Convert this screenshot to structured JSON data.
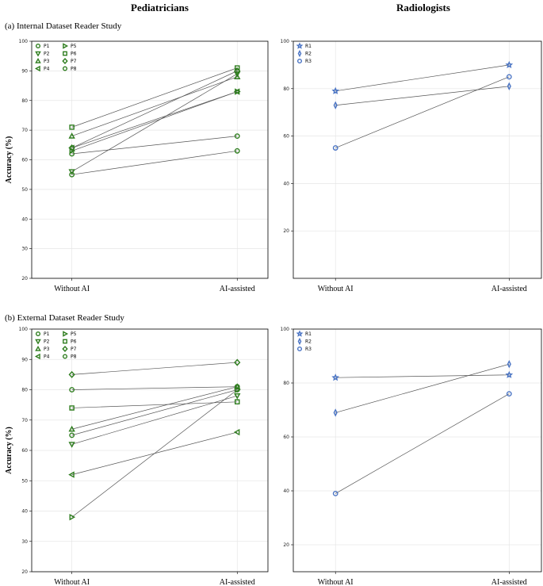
{
  "headers": {
    "left": "Pediatricians",
    "right": "Radiologists"
  },
  "sections": {
    "a": "(a) Internal Dataset Reader Study",
    "b": "(b) External Dataset Reader Study"
  },
  "colors": {
    "pediatrician": "#2e7d1e",
    "radiologist": "#4a74c4",
    "line": "#555555",
    "grid": "#e6e6e6"
  },
  "chart_data": [
    {
      "id": "internal-pediatricians",
      "type": "line",
      "categories": [
        "Without AI",
        "AI-assisted"
      ],
      "ylabel": "Accuracy (%)",
      "ylim": [
        20,
        100
      ],
      "yticks": [
        20,
        30,
        40,
        50,
        60,
        70,
        80,
        90,
        100
      ],
      "grid": true,
      "legend": "top-left",
      "series": [
        {
          "name": "P1",
          "marker": "circle",
          "values": [
            62,
            68
          ]
        },
        {
          "name": "P2",
          "marker": "triangle-down",
          "values": [
            56,
            89
          ]
        },
        {
          "name": "P3",
          "marker": "triangle-up",
          "values": [
            68,
            88
          ]
        },
        {
          "name": "P4",
          "marker": "triangle-left",
          "values": [
            64,
            83
          ]
        },
        {
          "name": "P5",
          "marker": "triangle-right",
          "values": [
            63,
            83
          ]
        },
        {
          "name": "P6",
          "marker": "square",
          "values": [
            71,
            91
          ]
        },
        {
          "name": "P7",
          "marker": "diamond",
          "values": [
            64,
            90
          ]
        },
        {
          "name": "P8",
          "marker": "circle",
          "values": [
            55,
            63
          ]
        }
      ]
    },
    {
      "id": "internal-radiologists",
      "type": "line",
      "categories": [
        "Without AI",
        "AI-assisted"
      ],
      "ylabel": "",
      "ylim": [
        0,
        100
      ],
      "yticks": [
        20,
        40,
        60,
        80,
        100
      ],
      "grid": true,
      "legend": "top-left",
      "series": [
        {
          "name": "R1",
          "marker": "star",
          "values": [
            79,
            90
          ]
        },
        {
          "name": "R2",
          "marker": "thin-diamond",
          "values": [
            73,
            81
          ]
        },
        {
          "name": "R3",
          "marker": "circle",
          "values": [
            55,
            85
          ]
        }
      ]
    },
    {
      "id": "external-pediatricians",
      "type": "line",
      "categories": [
        "Without AI",
        "AI-assisted"
      ],
      "ylabel": "Accuracy (%)",
      "ylim": [
        20,
        100
      ],
      "yticks": [
        20,
        30,
        40,
        50,
        60,
        70,
        80,
        90,
        100
      ],
      "grid": true,
      "legend": "top-left",
      "series": [
        {
          "name": "P1",
          "marker": "circle",
          "values": [
            80,
            81
          ]
        },
        {
          "name": "P2",
          "marker": "triangle-down",
          "values": [
            62,
            78
          ]
        },
        {
          "name": "P3",
          "marker": "triangle-up",
          "values": [
            67,
            81
          ]
        },
        {
          "name": "P4",
          "marker": "triangle-left",
          "values": [
            52,
            66
          ]
        },
        {
          "name": "P5",
          "marker": "triangle-right",
          "values": [
            38,
            80
          ]
        },
        {
          "name": "P6",
          "marker": "square",
          "values": [
            74,
            76
          ]
        },
        {
          "name": "P7",
          "marker": "diamond",
          "values": [
            85,
            89
          ]
        },
        {
          "name": "P8",
          "marker": "circle",
          "values": [
            65,
            80
          ]
        }
      ]
    },
    {
      "id": "external-radiologists",
      "type": "line",
      "categories": [
        "Without AI",
        "AI-assisted"
      ],
      "ylabel": "",
      "ylim": [
        10,
        100
      ],
      "yticks": [
        20,
        40,
        60,
        80,
        100
      ],
      "grid": true,
      "legend": "top-left",
      "series": [
        {
          "name": "R1",
          "marker": "star",
          "values": [
            82,
            83
          ]
        },
        {
          "name": "R2",
          "marker": "thin-diamond",
          "values": [
            69,
            87
          ]
        },
        {
          "name": "R3",
          "marker": "circle",
          "values": [
            39,
            76
          ]
        }
      ]
    }
  ]
}
